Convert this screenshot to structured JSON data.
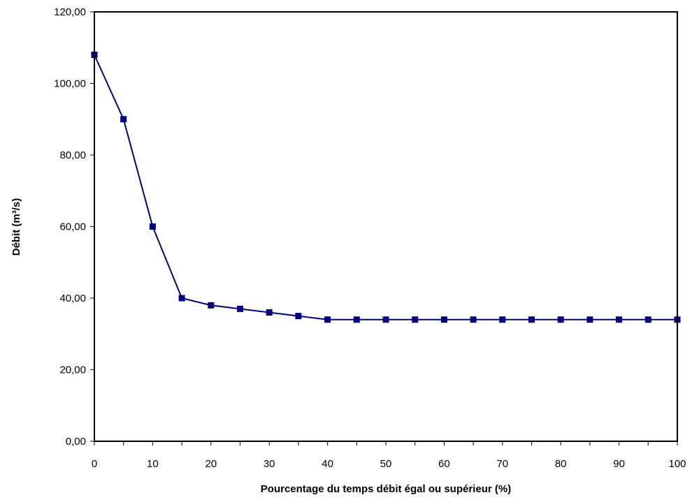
{
  "chart_data": {
    "type": "line",
    "xlabel": "Pourcentage du temps débit égal ou supérieur (%)",
    "ylabel": "Débit (m³/s)",
    "xlim": [
      0,
      100
    ],
    "ylim": [
      0,
      120
    ],
    "x_ticks": [
      "0",
      "10",
      "20",
      "30",
      "40",
      "50",
      "60",
      "70",
      "80",
      "90",
      "100"
    ],
    "x_tick_values": [
      0,
      10,
      20,
      30,
      40,
      50,
      60,
      70,
      80,
      90,
      100
    ],
    "y_ticks": [
      "0,00",
      "20,00",
      "40,00",
      "60,00",
      "80,00",
      "100,00",
      "120,00"
    ],
    "y_tick_values": [
      0,
      20,
      40,
      60,
      80,
      100,
      120
    ],
    "grid": false,
    "series": [
      {
        "color": "#000080",
        "marker": "square",
        "x": [
          0,
          5,
          10,
          15,
          20,
          25,
          30,
          35,
          40,
          45,
          50,
          55,
          60,
          65,
          70,
          75,
          80,
          85,
          90,
          95,
          100
        ],
        "y": [
          108,
          90,
          60,
          40,
          38,
          37,
          36,
          35,
          34,
          34,
          34,
          34,
          34,
          34,
          34,
          34,
          34,
          34,
          34,
          34,
          34
        ]
      }
    ]
  }
}
